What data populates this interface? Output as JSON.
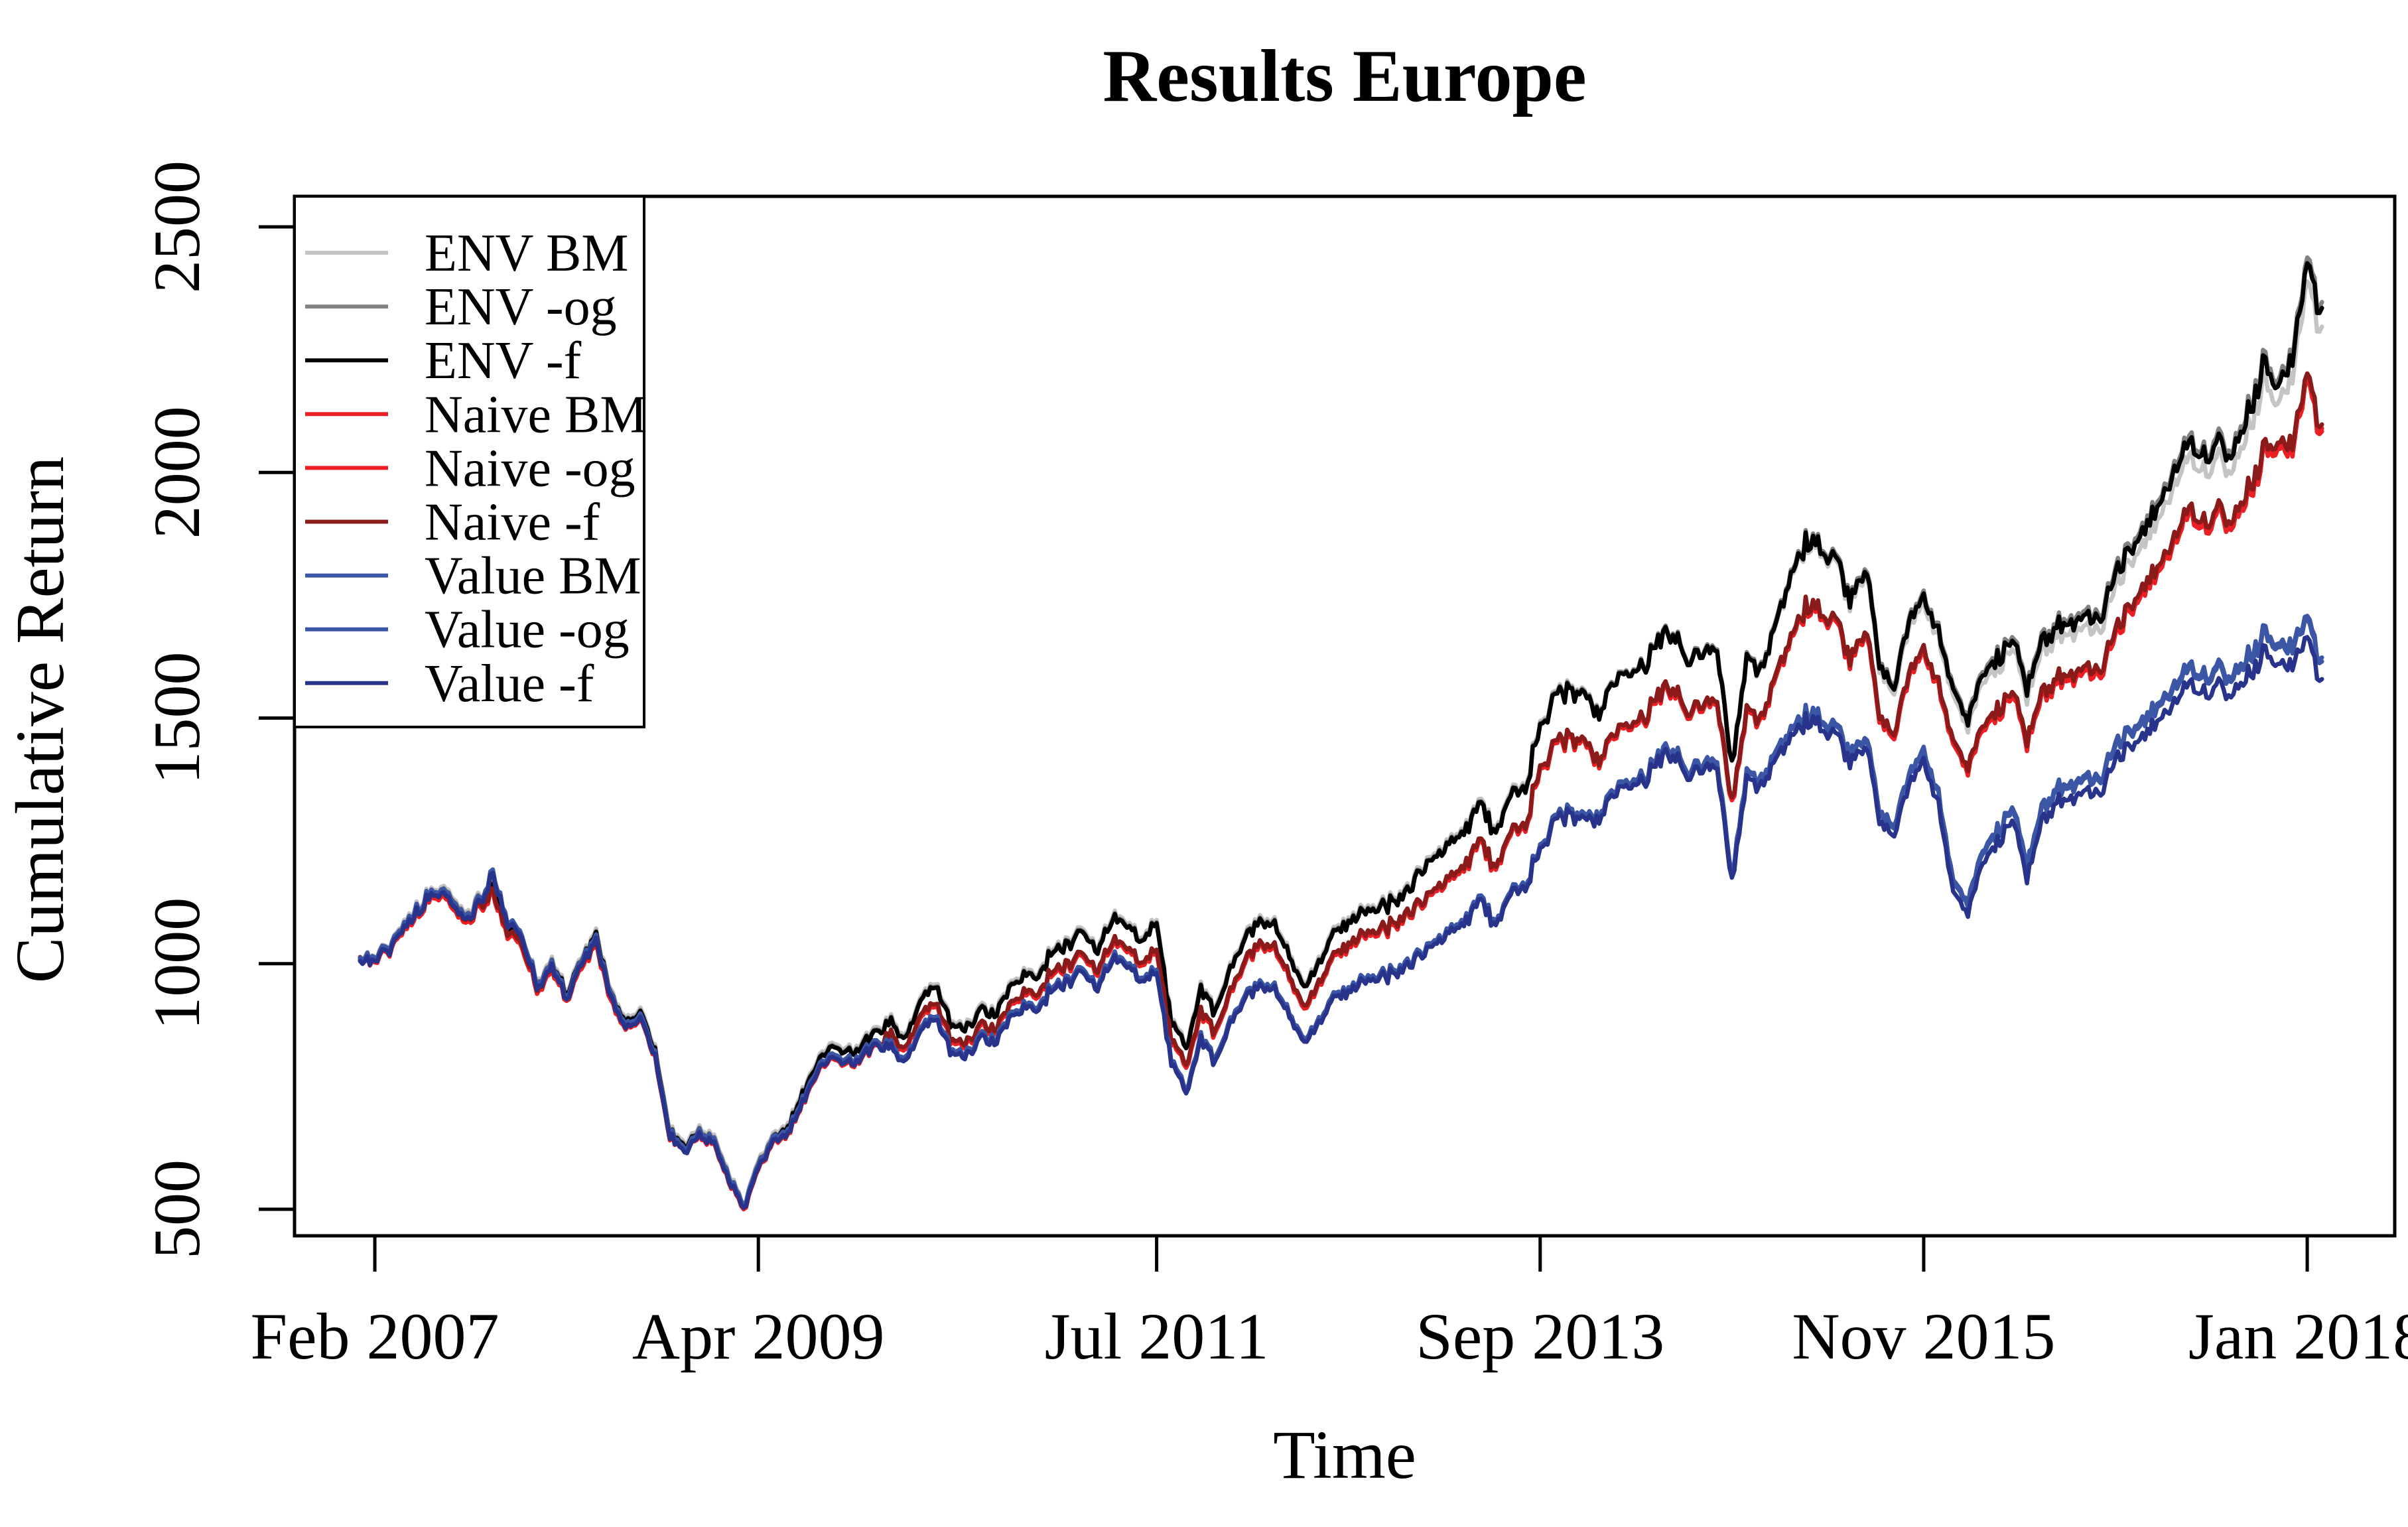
{
  "title": "Results Europe",
  "axes": {
    "x_label": "Time",
    "y_label": "Cumulative Return",
    "y_ticks": [
      500,
      1000,
      1500,
      2000,
      2500
    ],
    "x_ticks": [
      {
        "label": "Feb 2007",
        "month": 1
      },
      {
        "label": "Apr 2009",
        "month": 27
      },
      {
        "label": "Jul 2011",
        "month": 54
      },
      {
        "label": "Sep 2013",
        "month": 80
      },
      {
        "label": "Nov 2015",
        "month": 106
      },
      {
        "label": "Jan 2018",
        "month": 132
      }
    ]
  },
  "chart_data": {
    "type": "line",
    "title": "Results Europe",
    "xlabel": "Time",
    "ylabel": "Cumulative Return",
    "x_axis": {
      "start": "2007-01",
      "end": "2018-02",
      "interval": "monthly",
      "points_per_series": 134
    },
    "ylim": [
      446,
      2562
    ],
    "y_ticks": [
      500,
      1000,
      1500,
      2000,
      2500
    ],
    "x_tick_labels": [
      "Feb 2007",
      "Apr 2009",
      "Jul 2011",
      "Sep 2013",
      "Nov 2015",
      "Jan 2018"
    ],
    "grid": false,
    "legend_position": "top-left",
    "start_value": 1000,
    "series": [
      {
        "name": "ENV BM",
        "color": "#C4C4C4",
        "family": "ENV",
        "base_offset": 5,
        "end_offset": -34
      },
      {
        "name": "ENV -og",
        "color": "#828282",
        "family": "ENV",
        "base_offset": 0,
        "end_offset": 16
      },
      {
        "name": "ENV -f",
        "color": "#000000",
        "family": "ENV",
        "base_offset": -2,
        "end_offset": 4
      },
      {
        "name": "Naive BM",
        "color": "#EC2024",
        "family": "Naive",
        "base_offset": 0,
        "end_offset": -4
      },
      {
        "name": "Naive -og",
        "color": "#EC2024",
        "family": "Naive",
        "base_offset": -2,
        "end_offset": 2
      },
      {
        "name": "Naive -f",
        "color": "#8B1A1A",
        "family": "Naive",
        "base_offset": 4,
        "end_offset": 10
      },
      {
        "name": "Value BM",
        "color": "#3B56A5",
        "family": "Value",
        "base_offset": 3,
        "end_offset": 22
      },
      {
        "name": "Value -og",
        "color": "#3B56A5",
        "family": "Value",
        "base_offset": 0,
        "end_offset": 14
      },
      {
        "name": "Value -f",
        "color": "#28348C",
        "family": "Value",
        "base_offset": -4,
        "end_offset": -22
      }
    ],
    "families": {
      "ENV": [
        1000,
        1010,
        1035,
        1075,
        1115,
        1150,
        1140,
        1095,
        1125,
        1160,
        1075,
        1045,
        960,
        1000,
        940,
        1010,
        1060,
        950,
        880,
        910,
        820,
        660,
        630,
        660,
        640,
        570,
        505,
        590,
        650,
        665,
        735,
        805,
        835,
        815,
        835,
        865,
        880,
        850,
        930,
        965,
        880,
        870,
        905,
        895,
        950,
        985,
        975,
        1030,
        1040,
        1070,
        1030,
        1090,
        1080,
        1050,
        1090,
        880,
        830,
        950,
        900,
        1000,
        1050,
        1090,
        1080,
        1020,
        950,
        1000,
        1060,
        1090,
        1110,
        1110,
        1130,
        1150,
        1190,
        1220,
        1250,
        1270,
        1330,
        1260,
        1350,
        1360,
        1490,
        1540,
        1560,
        1540,
        1510,
        1580,
        1590,
        1610,
        1660,
        1670,
        1620,
        1630,
        1650,
        1400,
        1630,
        1600,
        1700,
        1790,
        1855,
        1850,
        1830,
        1740,
        1810,
        1620,
        1570,
        1690,
        1740,
        1680,
        1560,
        1500,
        1590,
        1620,
        1650,
        1560,
        1650,
        1680,
        1690,
        1710,
        1690,
        1790,
        1840,
        1880,
        1940,
        2000,
        2060,
        2030,
        2050,
        2030,
        2120,
        2210,
        2170,
        2250,
        2420,
        2300
      ],
      "Naive": [
        1000,
        1005,
        1030,
        1065,
        1105,
        1140,
        1125,
        1080,
        1110,
        1145,
        1060,
        1030,
        945,
        985,
        925,
        995,
        1040,
        935,
        865,
        895,
        805,
        650,
        620,
        650,
        630,
        560,
        500,
        580,
        640,
        650,
        715,
        785,
        810,
        790,
        810,
        835,
        850,
        825,
        895,
        925,
        845,
        835,
        870,
        860,
        910,
        945,
        935,
        985,
        995,
        1020,
        985,
        1040,
        1030,
        1000,
        1030,
        840,
        790,
        900,
        855,
        950,
        1000,
        1040,
        1030,
        975,
        905,
        955,
        1010,
        1040,
        1060,
        1060,
        1080,
        1100,
        1120,
        1150,
        1175,
        1195,
        1250,
        1185,
        1270,
        1280,
        1400,
        1440,
        1460,
        1440,
        1410,
        1470,
        1480,
        1500,
        1545,
        1555,
        1510,
        1520,
        1540,
        1320,
        1520,
        1495,
        1590,
        1660,
        1720,
        1715,
        1700,
        1615,
        1680,
        1510,
        1470,
        1580,
        1630,
        1570,
        1450,
        1400,
        1480,
        1510,
        1540,
        1450,
        1540,
        1570,
        1580,
        1600,
        1580,
        1670,
        1720,
        1760,
        1810,
        1860,
        1920,
        1890,
        1910,
        1890,
        1960,
        2030,
        2050,
        2070,
        2190,
        2060
      ],
      "Value": [
        1000,
        1010,
        1035,
        1072,
        1112,
        1148,
        1135,
        1090,
        1120,
        1185,
        1085,
        1050,
        955,
        995,
        930,
        1005,
        1050,
        945,
        870,
        900,
        810,
        655,
        620,
        655,
        635,
        565,
        505,
        585,
        645,
        655,
        720,
        790,
        815,
        795,
        815,
        840,
        830,
        805,
        870,
        900,
        825,
        815,
        850,
        840,
        890,
        920,
        910,
        955,
        965,
        990,
        955,
        1010,
        1000,
        970,
        990,
        800,
        740,
        850,
        800,
        890,
        930,
        960,
        950,
        900,
        840,
        880,
        930,
        950,
        970,
        970,
        985,
        1000,
        1020,
        1045,
        1070,
        1085,
        1135,
        1075,
        1150,
        1160,
        1240,
        1290,
        1310,
        1290,
        1300,
        1355,
        1365,
        1380,
        1420,
        1430,
        1390,
        1400,
        1415,
        1170,
        1390,
        1370,
        1430,
        1470,
        1500,
        1495,
        1480,
        1420,
        1460,
        1310,
        1280,
        1370,
        1420,
        1340,
        1160,
        1120,
        1220,
        1260,
        1300,
        1190,
        1300,
        1340,
        1350,
        1370,
        1355,
        1430,
        1460,
        1480,
        1520,
        1550,
        1590,
        1570,
        1580,
        1565,
        1610,
        1650,
        1630,
        1645,
        1685,
        1580
      ]
    }
  },
  "render": {
    "noise_amplitude_pct": 1.4,
    "substeps_per_month": 6,
    "noise_seed": 2463534242,
    "offset_ramp_start_month": 78,
    "offset_ramp_exponent": 1.3
  }
}
